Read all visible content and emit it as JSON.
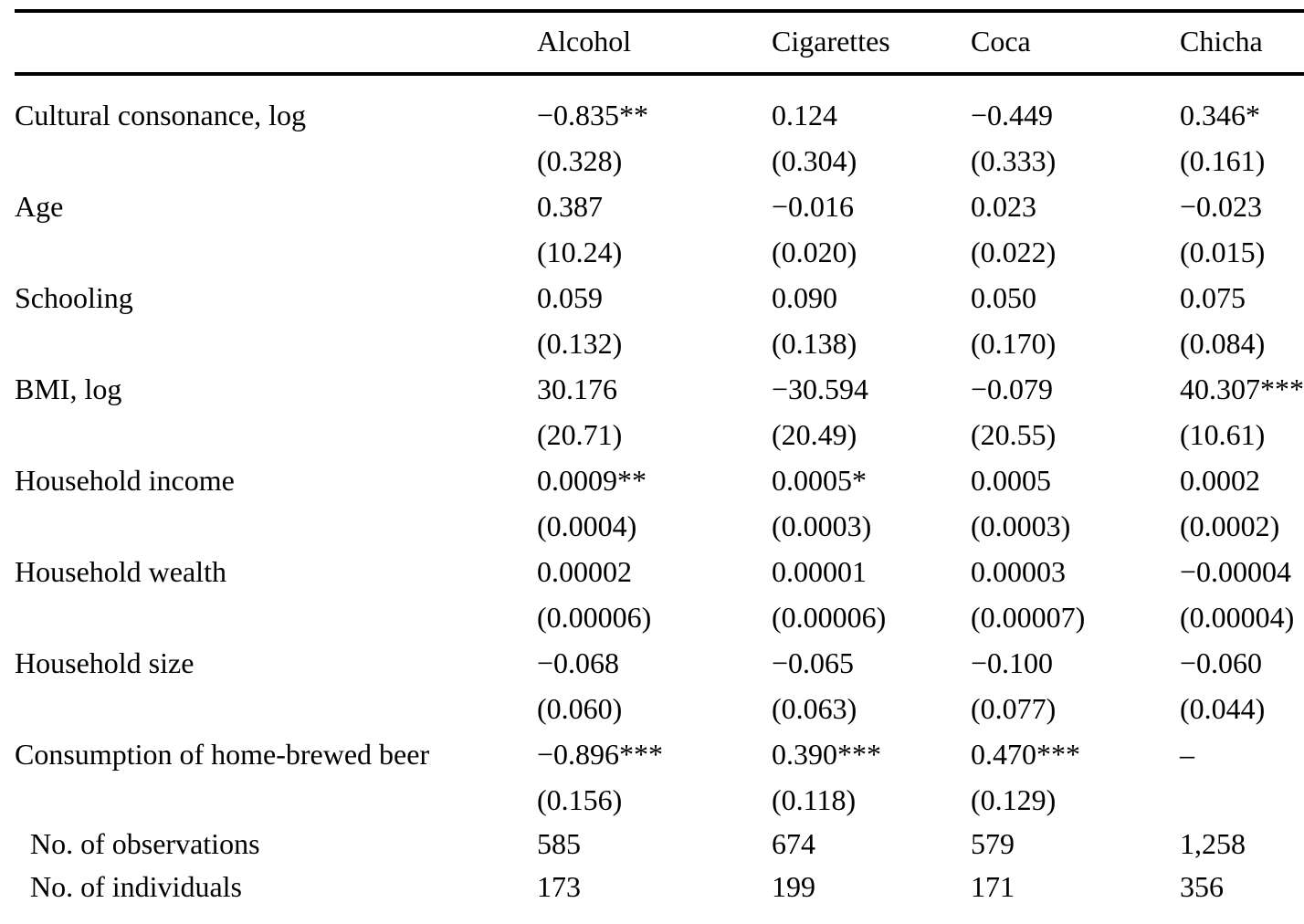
{
  "table": {
    "columns": [
      "",
      "Alcohol",
      "Cigarettes",
      "Coca",
      "Chicha"
    ],
    "rows": [
      {
        "label": "Cultural consonance, log",
        "coef": [
          "−0.835**",
          "0.124",
          "−0.449",
          "0.346*"
        ],
        "se": [
          "(0.328)",
          "(0.304)",
          "(0.333)",
          "(0.161)"
        ]
      },
      {
        "label": "Age",
        "coef": [
          "0.387",
          "−0.016",
          "0.023",
          "−0.023"
        ],
        "se": [
          "(10.24)",
          "(0.020)",
          "(0.022)",
          "(0.015)"
        ]
      },
      {
        "label": "Schooling",
        "coef": [
          "0.059",
          "0.090",
          "0.050",
          "0.075"
        ],
        "se": [
          "(0.132)",
          "(0.138)",
          "(0.170)",
          "(0.084)"
        ]
      },
      {
        "label": "BMI, log",
        "coef": [
          "30.176",
          "−30.594",
          "−0.079",
          "40.307***"
        ],
        "se": [
          "(20.71)",
          "(20.49)",
          "(20.55)",
          "(10.61)"
        ]
      },
      {
        "label": "Household income",
        "coef": [
          "0.0009**",
          "0.0005*",
          "0.0005",
          "0.0002"
        ],
        "se": [
          "(0.0004)",
          "(0.0003)",
          "(0.0003)",
          "(0.0002)"
        ]
      },
      {
        "label": "Household wealth",
        "coef": [
          "0.00002",
          "0.00001",
          "0.00003",
          "−0.00004"
        ],
        "se": [
          "(0.00006)",
          "(0.00006)",
          "(0.00007)",
          "(0.00004)"
        ]
      },
      {
        "label": "Household size",
        "coef": [
          "−0.068",
          "−0.065",
          "−0.100",
          "−0.060"
        ],
        "se": [
          "(0.060)",
          "(0.063)",
          "(0.077)",
          "(0.044)"
        ]
      },
      {
        "label": "Consumption of home-brewed beer",
        "coef": [
          "−0.896***",
          "0.390***",
          "0.470***",
          "–"
        ],
        "se": [
          "(0.156)",
          "(0.118)",
          "(0.129)",
          ""
        ]
      }
    ],
    "stats": [
      {
        "label": "No. of observations",
        "values": [
          "585",
          "674",
          "579",
          "1,258"
        ]
      },
      {
        "label": "No. of individuals",
        "values": [
          "173",
          "199",
          "171",
          "356"
        ]
      }
    ],
    "text_color": "#000000",
    "rule_color": "#000000",
    "background_color": "#ffffff"
  }
}
